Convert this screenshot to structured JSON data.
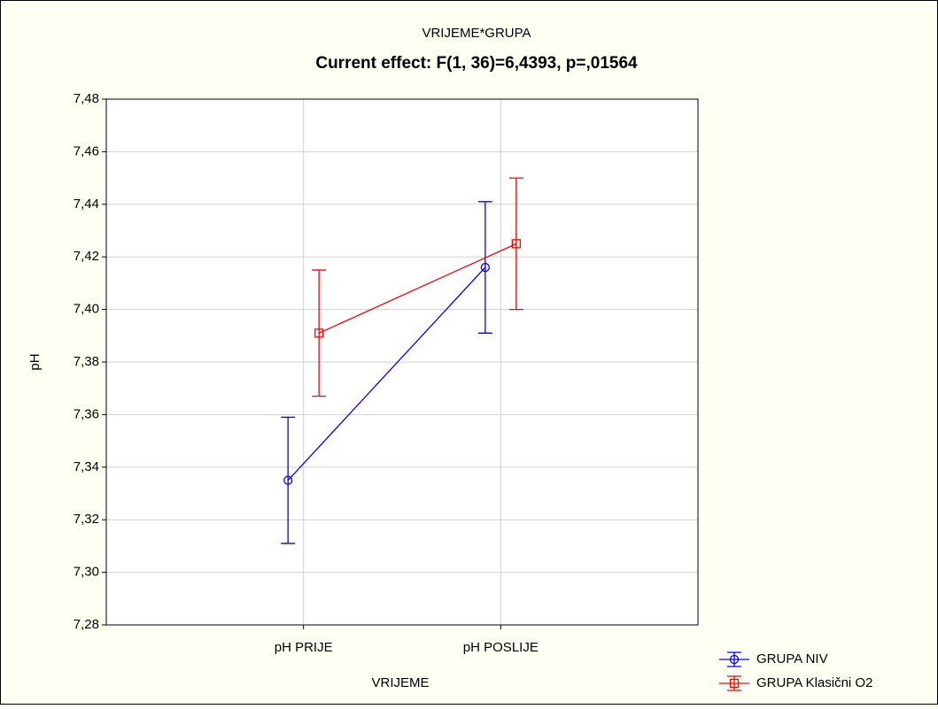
{
  "chart_data": {
    "type": "line",
    "title": "VRIJEME*GRUPA",
    "subtitle": "Current effect: F(1, 36)=6,4393, p=,01564",
    "x_label": "VRIJEME",
    "y_label": "pH",
    "categories": [
      "pH PRIJE",
      "pH POSLIJE"
    ],
    "series": [
      {
        "name": "GRUPA NIV",
        "color": "#0000ff",
        "marker": "circle",
        "values": [
          7.335,
          7.416
        ],
        "errors": [
          0.024,
          0.025
        ]
      },
      {
        "name": "GRUPA Klasični O2",
        "color": "#ff0000",
        "marker": "square",
        "values": [
          7.391,
          7.425
        ],
        "errors": [
          0.024,
          0.025
        ]
      }
    ],
    "ylim": [
      7.28,
      7.48
    ],
    "yticks": [
      {
        "value": 7.28,
        "label": "7,28"
      },
      {
        "value": 7.3,
        "label": "7,30"
      },
      {
        "value": 7.32,
        "label": "7,32"
      },
      {
        "value": 7.34,
        "label": "7,34"
      },
      {
        "value": 7.36,
        "label": "7,36"
      },
      {
        "value": 7.38,
        "label": "7,38"
      },
      {
        "value": 7.4,
        "label": "7,40"
      },
      {
        "value": 7.42,
        "label": "7,42"
      },
      {
        "value": 7.44,
        "label": "7,44"
      },
      {
        "value": 7.46,
        "label": "7,46"
      },
      {
        "value": 7.48,
        "label": "7,48"
      }
    ],
    "grid": true,
    "legend": "bottom-right"
  }
}
